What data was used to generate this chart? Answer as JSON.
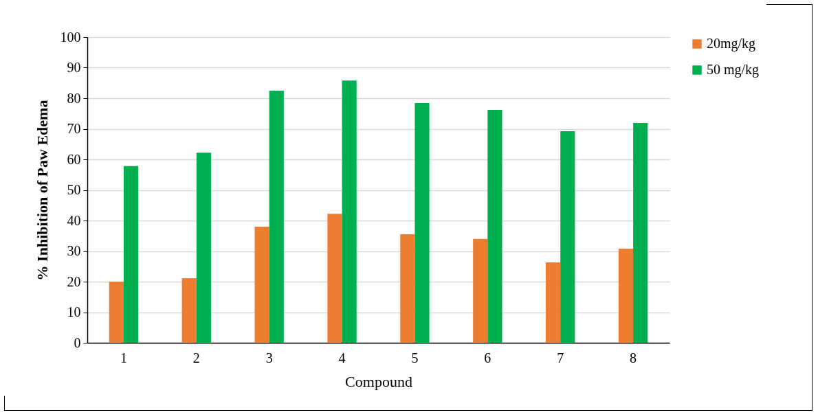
{
  "chart_data": {
    "type": "bar",
    "xlabel": "Compound",
    "ylabel": "% Inhibition of Paw Edema",
    "categories": [
      "1",
      "2",
      "3",
      "4",
      "5",
      "6",
      "7",
      "8"
    ],
    "series": [
      {
        "name": "20mg/kg",
        "color": "#ed7d31",
        "values": [
          20,
          21.1,
          38,
          42.2,
          35.5,
          34,
          26.3,
          30.8
        ]
      },
      {
        "name": "50 mg/kg",
        "color": "#00b050",
        "values": [
          57.8,
          62.2,
          82.5,
          85.8,
          78.4,
          76.2,
          69.2,
          71.9
        ]
      }
    ],
    "ylim": [
      0,
      100
    ],
    "yticks": [
      0,
      10,
      20,
      30,
      40,
      50,
      60,
      70,
      80,
      90,
      100
    ],
    "grid": "y",
    "legend": "right"
  }
}
